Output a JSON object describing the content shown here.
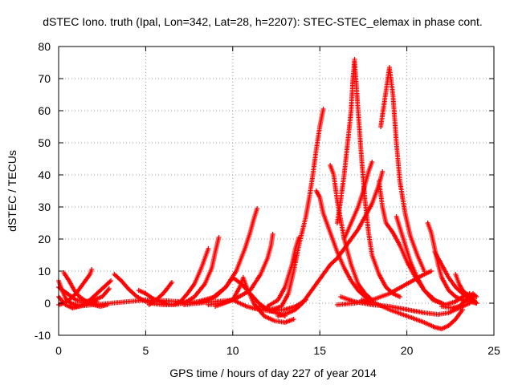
{
  "chart_data": {
    "type": "scatter",
    "title": "dSTEC Iono. truth (Ipal, Lon=342, Lat=28, h=2207): STEC-STEC_elemax in phase cont.",
    "xlabel": "GPS time / hours of day 227 of year 2014",
    "ylabel": "dSTEC  / TECUs",
    "xlim": [
      0,
      25
    ],
    "ylim": [
      -10,
      80
    ],
    "xticks": [
      0,
      5,
      10,
      15,
      20,
      25
    ],
    "yticks": [
      -10,
      0,
      10,
      20,
      30,
      40,
      50,
      60,
      70,
      80
    ],
    "xtick_labels": [
      "0",
      "5",
      "10",
      "15",
      "20",
      "25"
    ],
    "ytick_labels": [
      "-10",
      "0",
      "10",
      "20",
      "30",
      "40",
      "50",
      "60",
      "70",
      "80"
    ],
    "grid": true,
    "marker": "+",
    "color": "#ff0000",
    "series": [
      {
        "points": [
          [
            0.0,
            7
          ],
          [
            0.2,
            4
          ],
          [
            0.4,
            1.5
          ],
          [
            0.7,
            0
          ],
          [
            1.0,
            -0.5
          ],
          [
            1.4,
            -0.5
          ],
          [
            1.8,
            0
          ],
          [
            2.2,
            0.5
          ]
        ]
      },
      {
        "points": [
          [
            0.0,
            2
          ],
          [
            0.4,
            -0.5
          ],
          [
            0.8,
            -1.5
          ],
          [
            1.2,
            -1
          ],
          [
            1.6,
            0
          ],
          [
            2.0,
            2
          ],
          [
            2.4,
            4
          ],
          [
            2.8,
            6
          ],
          [
            3.0,
            7
          ]
        ]
      },
      {
        "points": [
          [
            0.3,
            9.5
          ],
          [
            0.6,
            7
          ],
          [
            0.9,
            4
          ],
          [
            1.2,
            2
          ],
          [
            1.6,
            0.5
          ],
          [
            2.0,
            -0.5
          ],
          [
            2.4,
            -1
          ],
          [
            2.8,
            -0.5
          ]
        ]
      },
      {
        "points": [
          [
            0.0,
            -0.5
          ],
          [
            0.3,
            0
          ],
          [
            0.6,
            1
          ],
          [
            1.0,
            3
          ],
          [
            1.4,
            6
          ],
          [
            1.8,
            9
          ],
          [
            1.9,
            10.5
          ]
        ]
      },
      {
        "points": [
          [
            0.0,
            5
          ],
          [
            0.5,
            3
          ],
          [
            1.0,
            1
          ],
          [
            1.5,
            0.5
          ],
          [
            2.0,
            1
          ],
          [
            2.5,
            2
          ],
          [
            2.9,
            4.5
          ]
        ]
      },
      {
        "points": [
          [
            3.2,
            9
          ],
          [
            3.6,
            7
          ],
          [
            4.0,
            4.5
          ],
          [
            4.5,
            2
          ],
          [
            5.0,
            0.5
          ],
          [
            5.5,
            -0.2
          ],
          [
            6.0,
            -0.5
          ],
          [
            6.5,
            -0.5
          ]
        ]
      },
      {
        "points": [
          [
            4.6,
            4
          ],
          [
            5.0,
            3
          ],
          [
            5.4,
            1.5
          ],
          [
            5.8,
            0.5
          ],
          [
            6.2,
            0
          ]
        ]
      },
      {
        "points": [
          [
            5.2,
            -0.5
          ],
          [
            5.6,
            1
          ],
          [
            6.0,
            3
          ],
          [
            6.3,
            5
          ],
          [
            6.5,
            6.5
          ]
        ]
      },
      {
        "points": [
          [
            1.0,
            -1
          ],
          [
            2.0,
            -0.5
          ],
          [
            3.0,
            0
          ],
          [
            4.0,
            0.5
          ],
          [
            5.0,
            1
          ],
          [
            6.0,
            0.8
          ],
          [
            7.0,
            0.5
          ],
          [
            8.0,
            0
          ]
        ]
      },
      {
        "points": [
          [
            6.0,
            0
          ],
          [
            6.6,
            -0.5
          ],
          [
            7.0,
            0.5
          ],
          [
            7.4,
            3
          ],
          [
            7.8,
            6
          ],
          [
            8.2,
            11
          ],
          [
            8.6,
            17
          ]
        ]
      },
      {
        "points": [
          [
            6.6,
            -0.5
          ],
          [
            7.2,
            0
          ],
          [
            7.8,
            2
          ],
          [
            8.4,
            6
          ],
          [
            8.8,
            11
          ],
          [
            9.0,
            16
          ],
          [
            9.2,
            20.5
          ]
        ]
      },
      {
        "points": [
          [
            7.2,
            -0.5
          ],
          [
            8.0,
            0
          ],
          [
            8.8,
            1.5
          ],
          [
            9.6,
            5
          ],
          [
            10.2,
            10
          ],
          [
            10.7,
            17
          ],
          [
            11.0,
            22
          ],
          [
            11.2,
            26
          ],
          [
            11.4,
            29.5
          ]
        ]
      },
      {
        "points": [
          [
            8.6,
            -0.5
          ],
          [
            9.4,
            0
          ],
          [
            10.2,
            1.5
          ],
          [
            11.0,
            4
          ],
          [
            11.6,
            9
          ],
          [
            12.0,
            14
          ],
          [
            12.2,
            18
          ],
          [
            12.3,
            21.5
          ]
        ]
      },
      {
        "points": [
          [
            7.0,
            0
          ],
          [
            8.0,
            0.5
          ],
          [
            9.0,
            2
          ],
          [
            9.6,
            5
          ],
          [
            10.0,
            8
          ],
          [
            10.5,
            6
          ],
          [
            11.0,
            3
          ],
          [
            11.5,
            0
          ],
          [
            12.0,
            -2
          ],
          [
            12.5,
            -3
          ],
          [
            13.0,
            -4
          ]
        ]
      },
      {
        "points": [
          [
            9.0,
            -1
          ],
          [
            10.0,
            1
          ],
          [
            10.4,
            5
          ],
          [
            10.6,
            8
          ],
          [
            10.8,
            5
          ],
          [
            11.2,
            0
          ],
          [
            11.8,
            -4
          ],
          [
            12.4,
            -5.5
          ],
          [
            13.0,
            -6
          ],
          [
            13.5,
            -5
          ]
        ]
      },
      {
        "points": [
          [
            8.0,
            0
          ],
          [
            9.0,
            0.5
          ],
          [
            10.0,
            1
          ],
          [
            10.8,
            -1
          ],
          [
            11.5,
            -2
          ],
          [
            12.2,
            -2.5
          ],
          [
            13.0,
            -2
          ],
          [
            13.6,
            -1
          ],
          [
            14.2,
            1
          ]
        ]
      },
      {
        "points": [
          [
            11.5,
            -1
          ],
          [
            12.2,
            -2
          ],
          [
            12.8,
            -1
          ],
          [
            13.2,
            3
          ],
          [
            13.5,
            10
          ],
          [
            13.8,
            18
          ],
          [
            14.2,
            27
          ],
          [
            14.4,
            33
          ],
          [
            14.6,
            40
          ],
          [
            14.8,
            48
          ],
          [
            15.0,
            55
          ],
          [
            15.2,
            60.5
          ]
        ]
      },
      {
        "points": [
          [
            12.0,
            -1
          ],
          [
            12.6,
            1
          ],
          [
            13.0,
            5
          ],
          [
            13.4,
            12
          ],
          [
            13.6,
            17
          ],
          [
            13.8,
            20.5
          ]
        ]
      },
      {
        "points": [
          [
            12.6,
            -4
          ],
          [
            13.2,
            -3
          ],
          [
            13.6,
            -2
          ],
          [
            14.0,
            0
          ],
          [
            14.4,
            3
          ],
          [
            14.8,
            6
          ],
          [
            15.2,
            9
          ],
          [
            15.6,
            12
          ],
          [
            16.0,
            14
          ],
          [
            16.4,
            17
          ],
          [
            16.8,
            20
          ],
          [
            17.2,
            23
          ],
          [
            17.6,
            27
          ],
          [
            18.0,
            31
          ],
          [
            18.4,
            37
          ],
          [
            18.6,
            41
          ]
        ]
      },
      {
        "points": [
          [
            14.8,
            35
          ],
          [
            15.0,
            33
          ],
          [
            15.2,
            28
          ],
          [
            15.6,
            22
          ],
          [
            16.0,
            16
          ],
          [
            16.4,
            11
          ],
          [
            16.8,
            7
          ],
          [
            17.2,
            4
          ],
          [
            17.6,
            2
          ],
          [
            18.0,
            0.5
          ]
        ]
      },
      {
        "points": [
          [
            15.6,
            43
          ],
          [
            15.8,
            40
          ],
          [
            16.0,
            32
          ],
          [
            16.4,
            20
          ],
          [
            16.8,
            12
          ],
          [
            17.2,
            6
          ],
          [
            17.6,
            3
          ],
          [
            18.0,
            1
          ]
        ]
      },
      {
        "points": [
          [
            16.0,
            25
          ],
          [
            16.2,
            32
          ],
          [
            16.4,
            40
          ],
          [
            16.6,
            50
          ],
          [
            16.8,
            60
          ],
          [
            16.9,
            70
          ],
          [
            17.0,
            76
          ]
        ]
      },
      {
        "points": [
          [
            17.0,
            75
          ],
          [
            17.1,
            68
          ],
          [
            17.2,
            60
          ],
          [
            17.4,
            45
          ],
          [
            17.6,
            32
          ],
          [
            17.8,
            22
          ],
          [
            18.0,
            15
          ],
          [
            18.4,
            9
          ],
          [
            18.8,
            5
          ],
          [
            19.2,
            3
          ],
          [
            19.6,
            2
          ]
        ]
      },
      {
        "points": [
          [
            16.4,
            20
          ],
          [
            16.8,
            25
          ],
          [
            17.2,
            30
          ],
          [
            17.5,
            35
          ],
          [
            17.8,
            41
          ],
          [
            18.0,
            44
          ]
        ]
      },
      {
        "points": [
          [
            18.5,
            55
          ],
          [
            18.8,
            66
          ],
          [
            19.0,
            73.5
          ],
          [
            19.2,
            65
          ],
          [
            19.4,
            50
          ],
          [
            19.6,
            38
          ],
          [
            19.9,
            28
          ],
          [
            20.2,
            21
          ],
          [
            20.6,
            15
          ],
          [
            21.0,
            10
          ]
        ]
      },
      {
        "points": [
          [
            18.4,
            38
          ],
          [
            18.6,
            30
          ],
          [
            18.8,
            25
          ],
          [
            19.2,
            22
          ],
          [
            19.6,
            18
          ],
          [
            20.0,
            13
          ],
          [
            20.5,
            8
          ],
          [
            21.0,
            4
          ],
          [
            21.5,
            1
          ],
          [
            22.0,
            0
          ]
        ]
      },
      {
        "points": [
          [
            19.4,
            27
          ],
          [
            19.8,
            20
          ],
          [
            20.2,
            13
          ],
          [
            20.6,
            8
          ],
          [
            21.0,
            4
          ],
          [
            21.6,
            1
          ],
          [
            22.2,
            -0.5
          ],
          [
            22.8,
            0.5
          ],
          [
            23.2,
            2
          ],
          [
            23.6,
            3
          ],
          [
            24.0,
            0
          ]
        ]
      },
      {
        "points": [
          [
            16.0,
            -0.5
          ],
          [
            17.0,
            0
          ],
          [
            18.0,
            1
          ],
          [
            19.0,
            3
          ],
          [
            20.0,
            6
          ],
          [
            21.0,
            9
          ],
          [
            21.4,
            10
          ]
        ]
      },
      {
        "points": [
          [
            17.4,
            1
          ],
          [
            18.2,
            0
          ],
          [
            19.0,
            -2
          ],
          [
            20.0,
            -4
          ],
          [
            21.0,
            -6
          ],
          [
            21.6,
            -7.5
          ],
          [
            22.0,
            -8
          ],
          [
            22.4,
            -7
          ],
          [
            22.8,
            -5
          ],
          [
            23.2,
            -2
          ]
        ]
      },
      {
        "points": [
          [
            16.2,
            2
          ],
          [
            17.0,
            0.5
          ],
          [
            18.0,
            -0.5
          ],
          [
            19.0,
            -1
          ],
          [
            20.0,
            -2
          ],
          [
            21.0,
            -3
          ],
          [
            21.8,
            -3.5
          ],
          [
            22.4,
            -3
          ],
          [
            23.0,
            -1.5
          ],
          [
            23.6,
            0
          ]
        ]
      },
      {
        "points": [
          [
            21.2,
            25
          ],
          [
            21.4,
            22
          ],
          [
            21.6,
            17
          ],
          [
            21.8,
            12
          ],
          [
            22.0,
            8
          ],
          [
            22.4,
            4
          ],
          [
            22.8,
            2
          ],
          [
            23.2,
            1
          ],
          [
            23.6,
            0.5
          ],
          [
            24.0,
            0
          ]
        ]
      },
      {
        "points": [
          [
            21.6,
            16
          ],
          [
            22.0,
            12
          ],
          [
            22.4,
            8
          ],
          [
            22.8,
            5
          ],
          [
            23.2,
            3
          ],
          [
            23.6,
            1.5
          ],
          [
            24.0,
            0
          ]
        ]
      },
      {
        "points": [
          [
            22.8,
            9
          ],
          [
            23.0,
            6
          ],
          [
            23.2,
            4
          ],
          [
            23.4,
            3
          ],
          [
            23.6,
            2
          ],
          [
            23.8,
            1
          ],
          [
            24.0,
            0
          ]
        ]
      },
      {
        "points": [
          [
            22.0,
            -1
          ],
          [
            22.6,
            -1.5
          ],
          [
            23.0,
            -1
          ],
          [
            23.4,
            1
          ],
          [
            23.8,
            3
          ],
          [
            24.0,
            2
          ]
        ]
      }
    ]
  }
}
